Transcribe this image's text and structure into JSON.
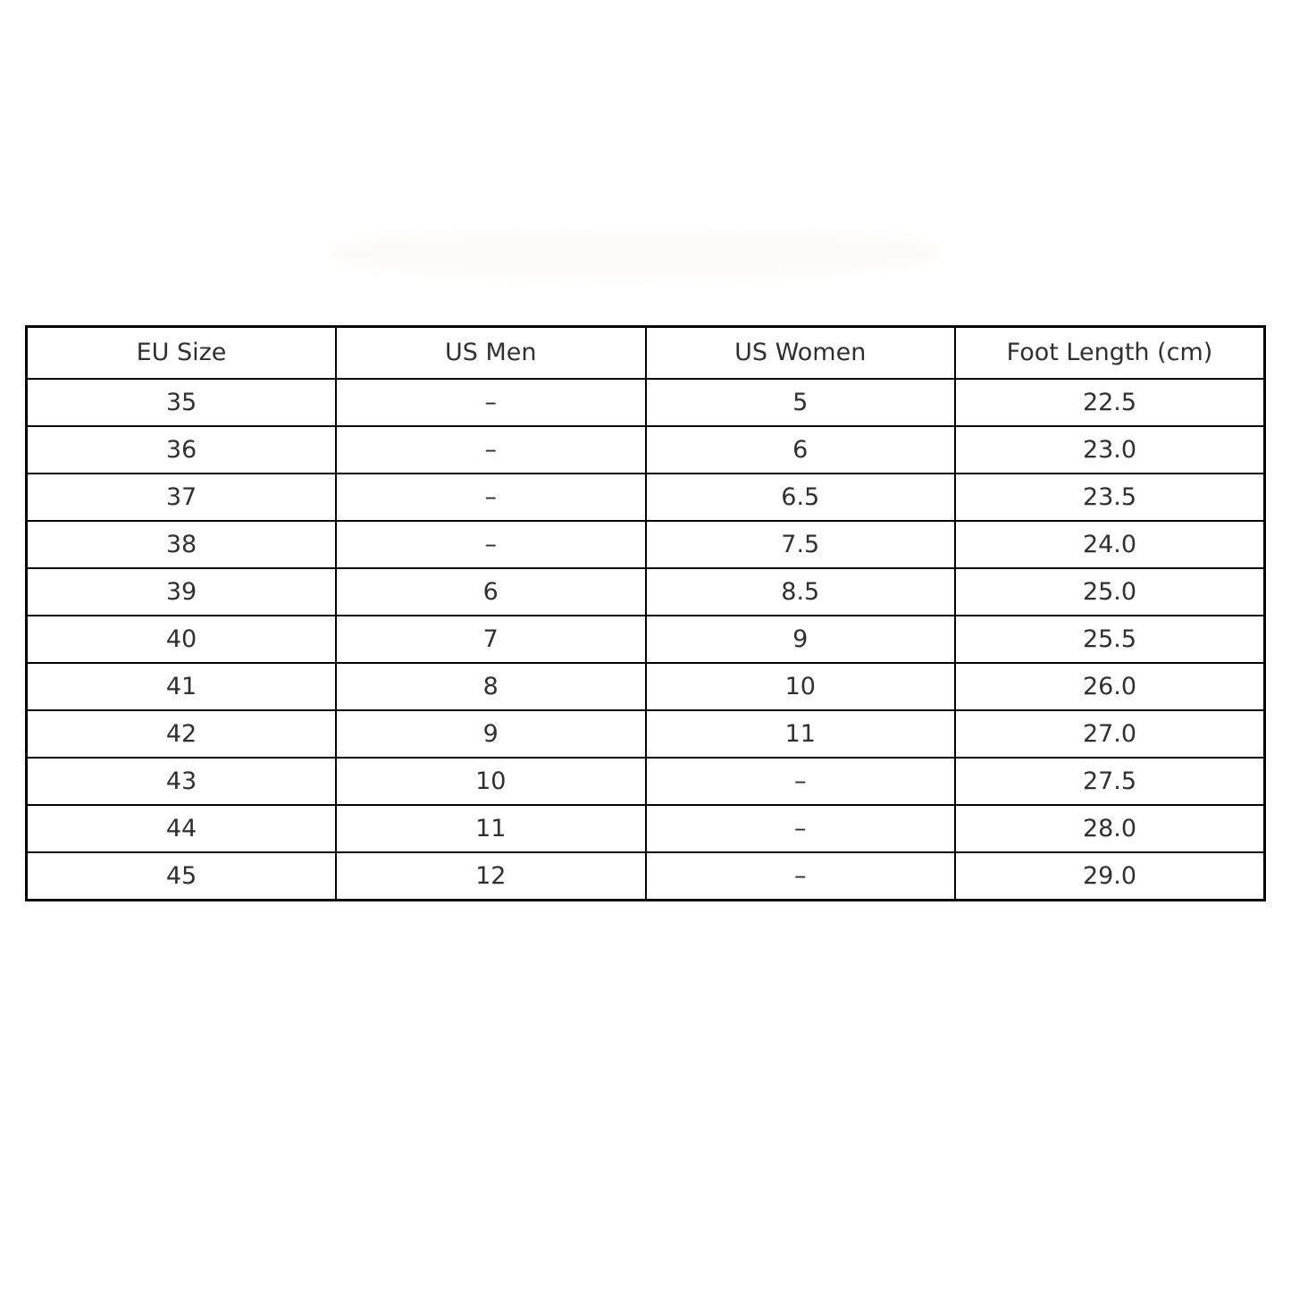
{
  "chart_data": {
    "type": "table",
    "columns": [
      "EU Size",
      "US Men",
      "US Women",
      "Foot Length (cm)"
    ],
    "rows": [
      [
        "35",
        "–",
        "5",
        "22.5"
      ],
      [
        "36",
        "–",
        "6",
        "23.0"
      ],
      [
        "37",
        "–",
        "6.5",
        "23.5"
      ],
      [
        "38",
        "–",
        "7.5",
        "24.0"
      ],
      [
        "39",
        "6",
        "8.5",
        "25.0"
      ],
      [
        "40",
        "7",
        "9",
        "25.5"
      ],
      [
        "41",
        "8",
        "10",
        "26.0"
      ],
      [
        "42",
        "9",
        "11",
        "27.0"
      ],
      [
        "43",
        "10",
        "–",
        "27.5"
      ],
      [
        "44",
        "11",
        "–",
        "28.0"
      ],
      [
        "45",
        "12",
        "–",
        "29.0"
      ]
    ],
    "layout": {
      "grid": "on",
      "columns_equal_width": true,
      "cell_text_align": "center"
    }
  },
  "colors": {
    "background": "#ffffff",
    "border": "#000000",
    "text": "#303030"
  }
}
